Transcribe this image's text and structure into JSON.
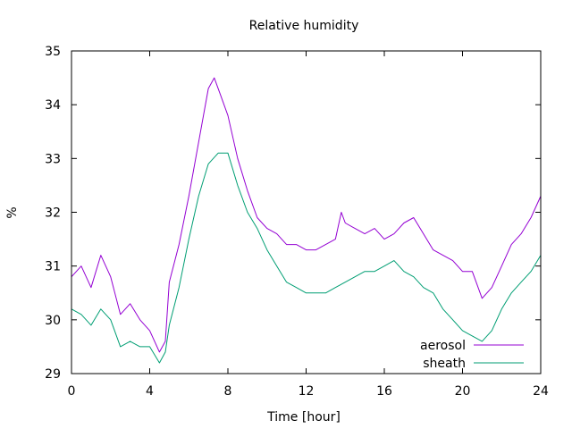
{
  "chart_data": {
    "type": "line",
    "title": "Relative humidity",
    "xlabel": "Time [hour]",
    "ylabel": "%",
    "xlim": [
      0,
      24
    ],
    "ylim": [
      29,
      35
    ],
    "xticks": [
      0,
      4,
      8,
      12,
      16,
      20,
      24
    ],
    "yticks": [
      29,
      30,
      31,
      32,
      33,
      34,
      35
    ],
    "grid": false,
    "legend_position": "bottom-right",
    "series": [
      {
        "name": "aerosol",
        "color": "#9400d3",
        "points": [
          [
            0,
            30.8
          ],
          [
            0.5,
            31.0
          ],
          [
            1,
            30.6
          ],
          [
            1.5,
            31.2
          ],
          [
            2,
            30.8
          ],
          [
            2.5,
            30.1
          ],
          [
            3,
            30.3
          ],
          [
            3.5,
            30.0
          ],
          [
            4,
            29.8
          ],
          [
            4.5,
            29.4
          ],
          [
            4.8,
            29.6
          ],
          [
            5,
            30.7
          ],
          [
            5.5,
            31.4
          ],
          [
            6,
            32.3
          ],
          [
            6.5,
            33.3
          ],
          [
            7,
            34.3
          ],
          [
            7.3,
            34.5
          ],
          [
            7.6,
            34.2
          ],
          [
            8,
            33.8
          ],
          [
            8.5,
            33.0
          ],
          [
            9,
            32.4
          ],
          [
            9.5,
            31.9
          ],
          [
            10,
            31.7
          ],
          [
            10.5,
            31.6
          ],
          [
            11,
            31.4
          ],
          [
            11.5,
            31.4
          ],
          [
            12,
            31.3
          ],
          [
            12.5,
            31.3
          ],
          [
            13,
            31.4
          ],
          [
            13.5,
            31.5
          ],
          [
            13.8,
            32.0
          ],
          [
            14,
            31.8
          ],
          [
            14.5,
            31.7
          ],
          [
            15,
            31.6
          ],
          [
            15.5,
            31.7
          ],
          [
            16,
            31.5
          ],
          [
            16.5,
            31.6
          ],
          [
            17,
            31.8
          ],
          [
            17.5,
            31.9
          ],
          [
            18,
            31.6
          ],
          [
            18.5,
            31.3
          ],
          [
            19,
            31.2
          ],
          [
            19.5,
            31.1
          ],
          [
            20,
            30.9
          ],
          [
            20.5,
            30.9
          ],
          [
            21,
            30.4
          ],
          [
            21.5,
            30.6
          ],
          [
            22,
            31.0
          ],
          [
            22.5,
            31.4
          ],
          [
            23,
            31.6
          ],
          [
            23.5,
            31.9
          ],
          [
            24,
            32.3
          ]
        ]
      },
      {
        "name": "sheath",
        "color": "#009e73",
        "points": [
          [
            0,
            30.2
          ],
          [
            0.5,
            30.1
          ],
          [
            1,
            29.9
          ],
          [
            1.5,
            30.2
          ],
          [
            2,
            30.0
          ],
          [
            2.5,
            29.5
          ],
          [
            3,
            29.6
          ],
          [
            3.5,
            29.5
          ],
          [
            4,
            29.5
          ],
          [
            4.5,
            29.2
          ],
          [
            4.8,
            29.4
          ],
          [
            5,
            29.9
          ],
          [
            5.5,
            30.6
          ],
          [
            6,
            31.5
          ],
          [
            6.5,
            32.3
          ],
          [
            7,
            32.9
          ],
          [
            7.5,
            33.1
          ],
          [
            8,
            33.1
          ],
          [
            8.5,
            32.5
          ],
          [
            9,
            32.0
          ],
          [
            9.5,
            31.7
          ],
          [
            10,
            31.3
          ],
          [
            10.5,
            31.0
          ],
          [
            11,
            30.7
          ],
          [
            11.5,
            30.6
          ],
          [
            12,
            30.5
          ],
          [
            12.5,
            30.5
          ],
          [
            13,
            30.5
          ],
          [
            13.5,
            30.6
          ],
          [
            14,
            30.7
          ],
          [
            14.5,
            30.8
          ],
          [
            15,
            30.9
          ],
          [
            15.5,
            30.9
          ],
          [
            16,
            31.0
          ],
          [
            16.5,
            31.1
          ],
          [
            17,
            30.9
          ],
          [
            17.5,
            30.8
          ],
          [
            18,
            30.6
          ],
          [
            18.5,
            30.5
          ],
          [
            19,
            30.2
          ],
          [
            19.5,
            30.0
          ],
          [
            20,
            29.8
          ],
          [
            20.5,
            29.7
          ],
          [
            21,
            29.6
          ],
          [
            21.5,
            29.8
          ],
          [
            22,
            30.2
          ],
          [
            22.5,
            30.5
          ],
          [
            23,
            30.7
          ],
          [
            23.5,
            30.9
          ],
          [
            24,
            31.2
          ]
        ]
      }
    ]
  }
}
